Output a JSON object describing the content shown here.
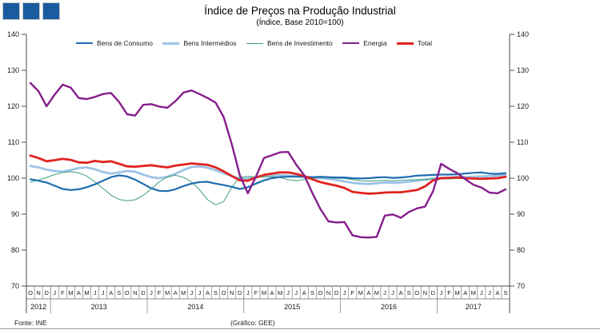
{
  "header": {
    "title": "Índice de Preços na Produção Industrial",
    "subtitle": "(Índice, Base 2010=100)"
  },
  "logo": {
    "color": "#1A5C9E",
    "square_count": 3
  },
  "footer": {
    "source": "Fonte: INE",
    "credit": "(Gráfico: GEE)"
  },
  "chart_data": {
    "type": "line",
    "title": "Índice de Preços na Produção Industrial",
    "subtitle": "(Índice, Base 2010=100)",
    "ylim": [
      70,
      140
    ],
    "yticks": [
      70,
      80,
      90,
      100,
      110,
      120,
      130,
      140
    ],
    "grid": false,
    "legend_position": "top",
    "axis_color": "#4d4d4d",
    "x_months": [
      "O",
      "N",
      "D",
      "J",
      "F",
      "M",
      "A",
      "M",
      "J",
      "J",
      "A",
      "S",
      "O",
      "N",
      "D",
      "J",
      "F",
      "M",
      "A",
      "M",
      "J",
      "J",
      "A",
      "S",
      "O",
      "N",
      "D",
      "J",
      "F",
      "M",
      "A",
      "M",
      "J",
      "J",
      "A",
      "S",
      "O",
      "N",
      "D",
      "J",
      "F",
      "M",
      "A",
      "M",
      "J",
      "J",
      "A",
      "S",
      "O",
      "N",
      "D",
      "J",
      "F",
      "M",
      "A",
      "M",
      "J",
      "J",
      "A",
      "S"
    ],
    "x_years": [
      {
        "label": "2012",
        "span": 3
      },
      {
        "label": "2013",
        "span": 12
      },
      {
        "label": "2014",
        "span": 12
      },
      {
        "label": "2015",
        "span": 12
      },
      {
        "label": "2016",
        "span": 12
      },
      {
        "label": "2017",
        "span": 9
      }
    ],
    "series": [
      {
        "name": "Bens de Consumo",
        "color": "#1E6CB0",
        "width": 2.2,
        "values": [
          99.7,
          99.3,
          98.8,
          97.9,
          97.0,
          96.7,
          96.9,
          97.5,
          98.3,
          99.3,
          100.3,
          100.8,
          100.5,
          99.6,
          98.4,
          97.2,
          96.5,
          96.4,
          96.9,
          97.8,
          98.5,
          98.9,
          99.0,
          98.5,
          98.1,
          97.6,
          97.0,
          97.5,
          98.5,
          99.4,
          100.0,
          100.3,
          100.4,
          100.5,
          100.4,
          100.3,
          100.4,
          100.3,
          100.2,
          100.2,
          100.0,
          99.9,
          100.0,
          100.2,
          100.3,
          100.1,
          100.2,
          100.4,
          100.7,
          100.8,
          100.9,
          101.0,
          101.0,
          101.1,
          101.3,
          101.5,
          101.6,
          101.3,
          101.2,
          101.4
        ]
      },
      {
        "name": "Bens Intermédios",
        "color": "#9CC3E5",
        "width": 2.8,
        "values": [
          103.4,
          103.0,
          102.4,
          102.0,
          101.8,
          102.3,
          102.8,
          103.0,
          102.5,
          101.7,
          101.3,
          101.6,
          102.0,
          101.8,
          101.0,
          100.3,
          100.0,
          100.4,
          101.2,
          102.3,
          103.1,
          103.3,
          102.9,
          102.2,
          101.4,
          100.6,
          99.9,
          99.9,
          100.3,
          100.6,
          100.7,
          100.8,
          100.7,
          100.5,
          100.3,
          100.2,
          100.0,
          99.8,
          99.5,
          99.1,
          98.7,
          98.5,
          98.4,
          98.6,
          98.8,
          98.7,
          98.8,
          99.0,
          99.3,
          99.6,
          99.9,
          100.1,
          100.2,
          100.3,
          100.3,
          100.4,
          100.5,
          100.6,
          100.7,
          100.9
        ]
      },
      {
        "name": "Bens de Investimento",
        "color": "#3A9E7D",
        "width": 1.0,
        "values": [
          98.9,
          99.5,
          100.2,
          101.0,
          101.6,
          101.8,
          101.5,
          100.6,
          99.0,
          97.2,
          95.3,
          94.1,
          93.7,
          94.0,
          95.2,
          97.0,
          99.0,
          100.4,
          100.8,
          100.3,
          99.0,
          96.8,
          94.0,
          92.6,
          93.5,
          97.5,
          100.3,
          100.5,
          100.4,
          100.3,
          100.4,
          100.2,
          99.6,
          99.3,
          99.6,
          100.0,
          100.2,
          100.1,
          100.0,
          99.9,
          99.6,
          99.3,
          99.2,
          99.3,
          99.4,
          99.3,
          99.4,
          99.5,
          99.6,
          99.6,
          99.7,
          99.8,
          99.8,
          99.9,
          99.9,
          100.0,
          100.0,
          100.1,
          100.2,
          100.4
        ]
      },
      {
        "name": "Energia",
        "color": "#861E8C",
        "width": 2.4,
        "values": [
          126.5,
          124.2,
          120.0,
          123.2,
          126.0,
          125.2,
          122.3,
          122.0,
          122.6,
          123.4,
          123.7,
          121.2,
          117.8,
          117.4,
          120.4,
          120.6,
          119.9,
          119.6,
          121.4,
          123.8,
          124.4,
          123.4,
          122.3,
          121.0,
          117.0,
          109.5,
          100.8,
          95.8,
          100.4,
          105.6,
          106.4,
          107.2,
          107.3,
          103.8,
          100.8,
          95.9,
          91.5,
          88.0,
          87.7,
          87.8,
          84.1,
          83.6,
          83.5,
          83.7,
          89.6,
          89.9,
          89.0,
          90.6,
          91.6,
          92.1,
          96.4,
          104.0,
          102.6,
          101.4,
          99.7,
          98.2,
          97.4,
          96.0,
          95.8,
          96.9
        ]
      },
      {
        "name": "Total",
        "color": "#E02320",
        "width": 2.8,
        "values": [
          106.3,
          105.6,
          104.7,
          105.0,
          105.4,
          105.1,
          104.4,
          104.3,
          104.8,
          104.5,
          104.7,
          104.0,
          103.3,
          103.2,
          103.4,
          103.6,
          103.3,
          103.0,
          103.5,
          103.8,
          104.1,
          103.9,
          103.7,
          103.0,
          101.9,
          100.6,
          99.4,
          99.3,
          100.2,
          100.9,
          101.3,
          101.6,
          101.6,
          101.2,
          100.6,
          99.7,
          98.9,
          98.4,
          97.9,
          97.3,
          96.2,
          95.9,
          95.7,
          95.8,
          96.0,
          96.1,
          96.1,
          96.4,
          96.7,
          97.7,
          99.4,
          100.0,
          100.1,
          100.2,
          100.0,
          99.9,
          99.8,
          99.9,
          100.0,
          100.4
        ]
      }
    ]
  }
}
